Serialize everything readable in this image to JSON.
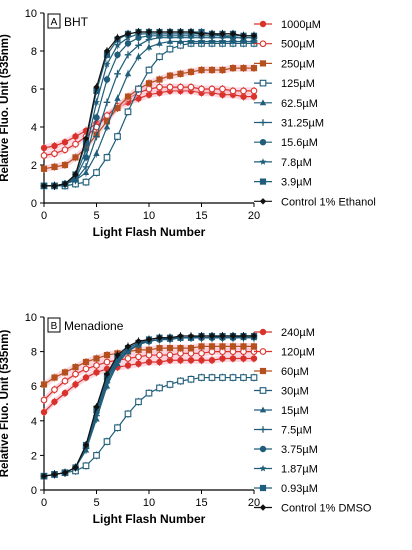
{
  "chart_data": [
    {
      "type": "line",
      "panel_label": "A",
      "panel_title": "BHT",
      "xlabel": "Light Flash Number",
      "ylabel": "Relative Fluo. Unit (535nm)",
      "xlim": [
        0,
        20
      ],
      "ylim": [
        0,
        10
      ],
      "xticks": [
        "0",
        "5",
        "10",
        "15",
        "20"
      ],
      "yticks": [
        "0",
        "2",
        "4",
        "6",
        "8",
        "10"
      ],
      "grid": false,
      "legend_position": "right",
      "x": [
        0,
        1,
        2,
        3,
        4,
        5,
        6,
        7,
        8,
        9,
        10,
        11,
        12,
        13,
        14,
        15,
        16,
        17,
        18,
        19,
        20
      ],
      "series": [
        {
          "name": "1000µM",
          "color": "#d9322b",
          "marker": "circle-filled",
          "values": [
            2.9,
            3.0,
            3.2,
            3.5,
            3.8,
            4.2,
            4.6,
            5.0,
            5.3,
            5.5,
            5.7,
            5.8,
            5.9,
            5.9,
            5.9,
            5.8,
            5.8,
            5.7,
            5.7,
            5.6,
            5.6
          ]
        },
        {
          "name": "500µM",
          "color": "#d9322b",
          "marker": "circle-open",
          "values": [
            2.5,
            2.6,
            2.8,
            3.1,
            3.5,
            4.0,
            4.6,
            5.1,
            5.5,
            5.8,
            6.0,
            6.1,
            6.1,
            6.1,
            6.1,
            6.0,
            6.0,
            6.0,
            5.9,
            5.9,
            5.9
          ]
        },
        {
          "name": "250µM",
          "color": "#b5501e",
          "marker": "square-filled",
          "values": [
            1.8,
            1.9,
            2.0,
            2.4,
            2.9,
            3.6,
            4.3,
            5.0,
            5.6,
            6.0,
            6.3,
            6.5,
            6.7,
            6.8,
            6.9,
            7.0,
            7.0,
            7.0,
            7.1,
            7.1,
            7.1
          ]
        },
        {
          "name": "125µM",
          "color": "#1f5d7a",
          "marker": "square-open",
          "values": [
            0.9,
            0.9,
            0.9,
            1.0,
            1.1,
            1.6,
            2.4,
            3.5,
            4.8,
            6.0,
            7.0,
            7.7,
            8.1,
            8.3,
            8.4,
            8.4,
            8.4,
            8.4,
            8.4,
            8.4,
            8.4
          ]
        },
        {
          "name": "62.5µM",
          "color": "#1f5d7a",
          "marker": "triangle-filled",
          "values": [
            0.9,
            0.9,
            1.0,
            1.2,
            1.6,
            2.6,
            4.0,
            5.5,
            6.8,
            7.7,
            8.2,
            8.4,
            8.5,
            8.5,
            8.5,
            8.5,
            8.5,
            8.5,
            8.5,
            8.5,
            8.5
          ]
        },
        {
          "name": "31.25µM",
          "color": "#1f5d7a",
          "marker": "plus",
          "values": [
            0.9,
            0.9,
            1.0,
            1.2,
            1.9,
            3.5,
            5.3,
            6.8,
            7.8,
            8.3,
            8.6,
            8.7,
            8.7,
            8.7,
            8.7,
            8.7,
            8.7,
            8.7,
            8.7,
            8.7,
            8.7
          ]
        },
        {
          "name": "15.6µM",
          "color": "#1f5d7a",
          "marker": "circle-filled",
          "values": [
            0.9,
            0.9,
            1.0,
            1.3,
            2.4,
            4.5,
            6.5,
            7.8,
            8.4,
            8.7,
            8.8,
            8.8,
            8.8,
            8.8,
            8.8,
            8.8,
            8.8,
            8.8,
            8.7,
            8.7,
            8.7
          ]
        },
        {
          "name": "7.8µM",
          "color": "#1f5d7a",
          "marker": "star",
          "values": [
            0.9,
            0.9,
            1.0,
            1.4,
            2.8,
            5.3,
            7.3,
            8.3,
            8.7,
            8.9,
            8.9,
            8.9,
            8.9,
            8.9,
            8.9,
            8.9,
            8.9,
            8.8,
            8.8,
            8.8,
            8.8
          ]
        },
        {
          "name": "3.9µM",
          "color": "#1f5d7a",
          "marker": "square-filled",
          "values": [
            0.9,
            0.9,
            1.0,
            1.5,
            3.2,
            5.9,
            7.8,
            8.6,
            8.9,
            9.0,
            9.0,
            9.0,
            9.0,
            9.0,
            9.0,
            9.0,
            8.9,
            8.9,
            8.9,
            8.8,
            8.8
          ]
        },
        {
          "name": "Control 1% Ethanol",
          "color": "#111111",
          "marker": "diamond-filled",
          "values": [
            0.9,
            0.9,
            1.0,
            1.5,
            3.4,
            6.1,
            8.0,
            8.7,
            8.9,
            9.0,
            9.0,
            9.0,
            9.0,
            9.0,
            9.0,
            8.9,
            8.9,
            8.9,
            8.9,
            8.8,
            8.8
          ]
        }
      ]
    },
    {
      "type": "line",
      "panel_label": "B",
      "panel_title": "Menadione",
      "xlabel": "Light Flash Number",
      "ylabel": "Relative Fluo. Unit (535nm)",
      "xlim": [
        0,
        20
      ],
      "ylim": [
        0,
        10
      ],
      "xticks": [
        "0",
        "5",
        "10",
        "15",
        "20"
      ],
      "yticks": [
        "0",
        "2",
        "4",
        "6",
        "8",
        "10"
      ],
      "grid": false,
      "legend_position": "right",
      "x": [
        0,
        1,
        2,
        3,
        4,
        5,
        6,
        7,
        8,
        9,
        10,
        11,
        12,
        13,
        14,
        15,
        16,
        17,
        18,
        19,
        20
      ],
      "series": [
        {
          "name": "240µM",
          "color": "#d9322b",
          "marker": "circle-filled",
          "values": [
            4.5,
            5.1,
            5.6,
            6.1,
            6.5,
            6.8,
            7.0,
            7.1,
            7.2,
            7.3,
            7.4,
            7.4,
            7.5,
            7.5,
            7.5,
            7.5,
            7.5,
            7.6,
            7.6,
            7.6,
            7.6
          ]
        },
        {
          "name": "120µM",
          "color": "#d9322b",
          "marker": "circle-open",
          "values": [
            5.2,
            5.8,
            6.3,
            6.7,
            7.0,
            7.2,
            7.4,
            7.5,
            7.6,
            7.7,
            7.8,
            7.8,
            7.8,
            7.9,
            7.9,
            7.9,
            8.0,
            8.0,
            8.0,
            8.0,
            8.0
          ]
        },
        {
          "name": "60µM",
          "color": "#b5501e",
          "marker": "square-filled",
          "values": [
            6.1,
            6.5,
            6.8,
            7.1,
            7.4,
            7.6,
            7.8,
            7.9,
            8.0,
            8.1,
            8.1,
            8.2,
            8.2,
            8.2,
            8.2,
            8.3,
            8.3,
            8.3,
            8.3,
            8.3,
            8.3
          ]
        },
        {
          "name": "30µM",
          "color": "#1f5d7a",
          "marker": "square-open",
          "values": [
            0.8,
            0.9,
            1.0,
            1.1,
            1.4,
            2.0,
            2.8,
            3.6,
            4.4,
            5.1,
            5.6,
            5.9,
            6.1,
            6.3,
            6.4,
            6.5,
            6.5,
            6.5,
            6.5,
            6.5,
            6.5
          ]
        },
        {
          "name": "15µM",
          "color": "#1f5d7a",
          "marker": "triangle-filled",
          "values": [
            0.8,
            0.9,
            1.0,
            1.3,
            2.3,
            4.1,
            6.0,
            7.3,
            8.0,
            8.4,
            8.6,
            8.7,
            8.7,
            8.8,
            8.8,
            8.8,
            8.8,
            8.8,
            8.8,
            8.8,
            8.8
          ]
        },
        {
          "name": "7.5µM",
          "color": "#1f5d7a",
          "marker": "plus",
          "values": [
            0.8,
            0.9,
            1.0,
            1.3,
            2.4,
            4.3,
            6.2,
            7.4,
            8.1,
            8.4,
            8.6,
            8.7,
            8.7,
            8.8,
            8.8,
            8.8,
            8.8,
            8.8,
            8.8,
            8.8,
            8.8
          ]
        },
        {
          "name": "3.75µM",
          "color": "#1f5d7a",
          "marker": "circle-filled",
          "values": [
            0.8,
            0.9,
            1.0,
            1.3,
            2.5,
            4.5,
            6.4,
            7.5,
            8.1,
            8.4,
            8.6,
            8.7,
            8.8,
            8.8,
            8.8,
            8.8,
            8.8,
            8.8,
            8.8,
            8.9,
            8.9
          ]
        },
        {
          "name": "1.87µM",
          "color": "#1f5d7a",
          "marker": "star",
          "values": [
            0.8,
            0.9,
            1.0,
            1.3,
            2.5,
            4.6,
            6.5,
            7.6,
            8.2,
            8.5,
            8.6,
            8.7,
            8.8,
            8.8,
            8.8,
            8.8,
            8.8,
            8.9,
            8.9,
            8.9,
            8.9
          ]
        },
        {
          "name": "0.93µM",
          "color": "#1f5d7a",
          "marker": "square-filled",
          "values": [
            0.8,
            0.9,
            1.0,
            1.3,
            2.6,
            4.7,
            6.6,
            7.7,
            8.2,
            8.5,
            8.7,
            8.8,
            8.8,
            8.8,
            8.8,
            8.9,
            8.9,
            8.9,
            8.9,
            8.9,
            8.9
          ]
        },
        {
          "name": "Control 1% DMSO",
          "color": "#111111",
          "marker": "diamond-filled",
          "values": [
            0.8,
            0.9,
            1.0,
            1.3,
            2.6,
            4.8,
            6.7,
            7.8,
            8.3,
            8.6,
            8.7,
            8.8,
            8.8,
            8.9,
            8.9,
            8.9,
            8.9,
            8.9,
            8.9,
            8.9,
            8.9
          ]
        }
      ]
    }
  ]
}
